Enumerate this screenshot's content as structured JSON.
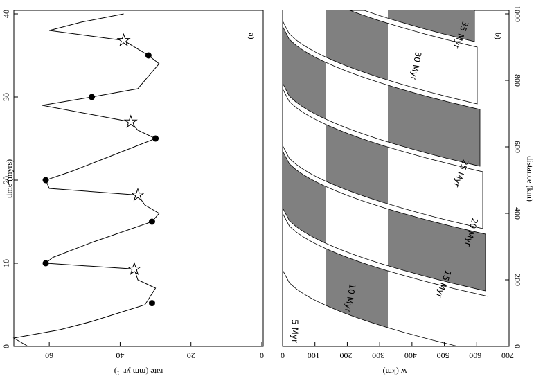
{
  "chart_data": [
    {
      "type": "line",
      "panel_label": "a)",
      "x_label": "time (myrs)",
      "y_label": "rate (mm yr⁻¹)",
      "x": [
        0,
        1,
        2,
        3,
        5,
        7,
        8,
        9.3,
        10,
        10.7,
        12.5,
        15,
        16,
        17,
        18.2,
        19,
        20,
        21,
        23,
        25,
        26,
        27,
        29,
        30,
        31,
        34,
        35,
        36.8,
        38,
        39,
        40
      ],
      "values": [
        66,
        70,
        57,
        48,
        33,
        30,
        35,
        36,
        61,
        59,
        48,
        31,
        29,
        33,
        35,
        60,
        61,
        54,
        42,
        30,
        35,
        37,
        62,
        48,
        35,
        29,
        32,
        39,
        60,
        51,
        39
      ],
      "circles": {
        "x": [
          5.2,
          10,
          15,
          20,
          25,
          30,
          35
        ],
        "values": [
          31,
          61,
          31,
          61,
          30,
          48,
          32
        ]
      },
      "stars": {
        "x": [
          9.3,
          18.2,
          27,
          36.8
        ],
        "values": [
          36,
          35,
          37,
          39
        ]
      },
      "xlim": [
        0,
        40
      ],
      "xticks": [
        0,
        10,
        20,
        30,
        40
      ],
      "ylim": [
        0,
        70
      ],
      "yticks": [
        0,
        20,
        40,
        60
      ],
      "color": "#000000"
    },
    {
      "type": "layers",
      "panel_label": "b)",
      "x_label": "distance (km)",
      "y_label": "w (km)",
      "xlim": [
        0,
        1000
      ],
      "xticks": [
        0,
        200,
        400,
        600,
        800,
        1000
      ],
      "ylim": [
        0,
        -700
      ],
      "yticks": [
        0,
        -100,
        -200,
        -300,
        -400,
        -500,
        -600,
        -700
      ],
      "layer_labels": [
        "5 Myr",
        "10 Myr",
        "15 Myr",
        "20 Myr",
        "25 Myr",
        "30 Myr",
        "35 Myr"
      ],
      "color": "#808080"
    }
  ]
}
